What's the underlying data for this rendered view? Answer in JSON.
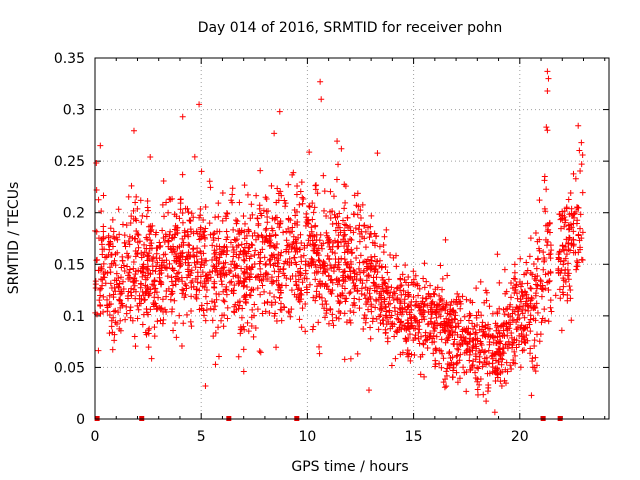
{
  "chart_data": {
    "type": "scatter",
    "title": "Day 014 of 2016, SRMTID for receiver pohn",
    "xlabel": "GPS time / hours",
    "ylabel": "SRMTID / TECUs",
    "xlim": [
      0,
      24.2
    ],
    "ylim": [
      0,
      0.35
    ],
    "xticks": [
      0,
      5,
      10,
      15,
      20
    ],
    "xtick_labels": [
      "0",
      "5",
      "10",
      "15",
      "20"
    ],
    "yticks": [
      0,
      0.05,
      0.1,
      0.15,
      0.2,
      0.25,
      0.3,
      0.35
    ],
    "ytick_labels": [
      "0",
      "0.05",
      "0.1",
      "0.15",
      "0.2",
      "0.25",
      "0.3",
      "0.35"
    ],
    "grid": true,
    "series": [
      {
        "name": "SRMTID",
        "color": "#ff0000",
        "marker": "plus",
        "trend": {
          "x": [
            0.0,
            0.5,
            1.0,
            2.0,
            3.0,
            4.0,
            5.0,
            6.0,
            7.0,
            8.0,
            9.0,
            10.0,
            11.0,
            12.0,
            13.0,
            14.0,
            15.0,
            16.0,
            17.0,
            18.0,
            19.0,
            20.0,
            20.5,
            21.0,
            21.2,
            21.5,
            22.0,
            22.5,
            23.0
          ],
          "y": [
            0.16,
            0.14,
            0.13,
            0.15,
            0.14,
            0.16,
            0.15,
            0.15,
            0.14,
            0.16,
            0.15,
            0.16,
            0.15,
            0.15,
            0.14,
            0.11,
            0.1,
            0.095,
            0.08,
            0.07,
            0.075,
            0.1,
            0.11,
            0.12,
            0.16,
            0.13,
            0.15,
            0.18,
            0.2
          ]
        },
        "spread": 0.038,
        "count": 2600
      }
    ],
    "outliers": [
      {
        "x": 10.6,
        "y": 0.327
      },
      {
        "x": 10.65,
        "y": 0.31
      },
      {
        "x": 4.9,
        "y": 0.305
      },
      {
        "x": 8.7,
        "y": 0.298
      },
      {
        "x": 21.3,
        "y": 0.337
      },
      {
        "x": 21.35,
        "y": 0.33
      },
      {
        "x": 21.3,
        "y": 0.318
      },
      {
        "x": 21.25,
        "y": 0.283
      },
      {
        "x": 21.3,
        "y": 0.28
      },
      {
        "x": 22.9,
        "y": 0.268
      },
      {
        "x": 0.25,
        "y": 0.265
      },
      {
        "x": 11.6,
        "y": 0.262
      },
      {
        "x": 2.6,
        "y": 0.254
      },
      {
        "x": 12.9,
        "y": 0.028
      },
      {
        "x": 5.2,
        "y": 0.032
      },
      {
        "x": 18.5,
        "y": 0.027
      }
    ],
    "x_markers": [
      0.1,
      2.2,
      6.3,
      9.5,
      21.1,
      21.9
    ]
  }
}
